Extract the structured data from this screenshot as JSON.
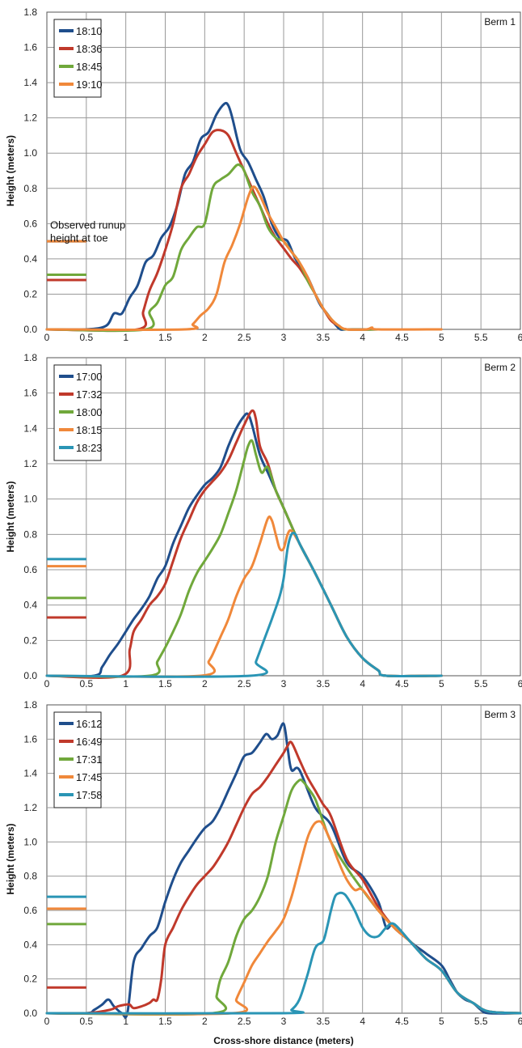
{
  "chart_data": [
    {
      "type": "line",
      "title": "Berm 1",
      "xlabel": "",
      "ylabel": "Height (meters)",
      "xlim": [
        0,
        6
      ],
      "ylim": [
        0,
        1.8
      ],
      "xticks": [
        "0",
        "0.5",
        "1",
        "1.5",
        "2",
        "2.5",
        "3",
        "3.5",
        "4",
        "4.5",
        "5",
        "5.5",
        "6"
      ],
      "yticks": [
        "0.0",
        "0.2",
        "0.4",
        "0.6",
        "0.8",
        "1.0",
        "1.2",
        "1.4",
        "1.6",
        "1.8"
      ],
      "grid": true,
      "legend": "top-left",
      "annotation": [
        "Observed runup",
        "height at toe"
      ],
      "series": [
        {
          "name": "18:10",
          "color": "#1f4e8c",
          "runup": 0.5,
          "x": [
            0,
            0.5,
            0.75,
            0.85,
            0.95,
            1.05,
            1.15,
            1.25,
            1.35,
            1.45,
            1.55,
            1.65,
            1.75,
            1.85,
            1.95,
            2.05,
            2.15,
            2.25,
            2.3,
            2.35,
            2.45,
            2.55,
            2.65,
            2.75,
            2.85,
            2.95,
            3.05,
            3.15,
            3.3,
            3.45,
            3.55,
            3.65,
            3.72,
            3.8,
            4.2
          ],
          "y": [
            0,
            0,
            0.02,
            0.09,
            0.09,
            0.18,
            0.25,
            0.38,
            0.42,
            0.52,
            0.58,
            0.7,
            0.88,
            0.95,
            1.08,
            1.12,
            1.22,
            1.28,
            1.27,
            1.2,
            1.02,
            0.95,
            0.85,
            0.75,
            0.6,
            0.52,
            0.5,
            0.4,
            0.3,
            0.15,
            0.09,
            0.03,
            0,
            0,
            0
          ]
        },
        {
          "name": "18:36",
          "color": "#c0392b",
          "runup": 0.28,
          "x": [
            0,
            1.15,
            1.22,
            1.3,
            1.4,
            1.5,
            1.6,
            1.7,
            1.8,
            1.9,
            2.0,
            2.1,
            2.2,
            2.3,
            2.4,
            2.5,
            2.6,
            2.7,
            2.8,
            2.9,
            3.0,
            3.1,
            3.2,
            3.3,
            3.4,
            3.5,
            3.6,
            3.7,
            3.8,
            4.2
          ],
          "y": [
            0,
            0,
            0.1,
            0.22,
            0.32,
            0.45,
            0.6,
            0.8,
            0.88,
            0.98,
            1.05,
            1.12,
            1.13,
            1.1,
            1.0,
            0.9,
            0.8,
            0.7,
            0.6,
            0.52,
            0.46,
            0.4,
            0.35,
            0.28,
            0.2,
            0.12,
            0.05,
            0.02,
            0,
            0
          ]
        },
        {
          "name": "18:45",
          "color": "#70a83b",
          "runup": 0.31,
          "x": [
            0,
            1.25,
            1.3,
            1.4,
            1.5,
            1.6,
            1.7,
            1.8,
            1.9,
            2.0,
            2.1,
            2.2,
            2.3,
            2.4,
            2.45,
            2.5,
            2.6,
            2.7,
            2.8,
            2.9,
            3.0,
            3.1,
            3.2,
            3.3,
            3.4,
            3.5,
            3.6,
            3.7,
            3.8,
            4.2
          ],
          "y": [
            0,
            0,
            0.1,
            0.15,
            0.25,
            0.3,
            0.45,
            0.52,
            0.58,
            0.6,
            0.8,
            0.85,
            0.88,
            0.93,
            0.93,
            0.9,
            0.78,
            0.7,
            0.58,
            0.52,
            0.5,
            0.44,
            0.38,
            0.28,
            0.2,
            0.12,
            0.06,
            0.02,
            0,
            0
          ]
        },
        {
          "name": "19:10",
          "color": "#f0883a",
          "runup": 0.5,
          "x": [
            0,
            1.75,
            1.85,
            1.95,
            2.05,
            2.15,
            2.25,
            2.35,
            2.45,
            2.55,
            2.62,
            2.7,
            2.8,
            2.9,
            3.0,
            3.1,
            3.2,
            3.3,
            3.4,
            3.5,
            3.6,
            3.7,
            3.8,
            4.05,
            4.12,
            4.2,
            5.0
          ],
          "y": [
            0,
            0,
            0.03,
            0.08,
            0.12,
            0.2,
            0.38,
            0.48,
            0.6,
            0.75,
            0.81,
            0.76,
            0.66,
            0.58,
            0.5,
            0.44,
            0.38,
            0.3,
            0.2,
            0.12,
            0.06,
            0.02,
            0,
            0,
            0.01,
            0,
            0
          ]
        }
      ]
    },
    {
      "type": "line",
      "title": "Berm 2",
      "xlabel": "",
      "ylabel": "Height (meters)",
      "xlim": [
        0,
        6
      ],
      "ylim": [
        0,
        1.8
      ],
      "xticks": [
        "0",
        "0.5",
        "1",
        "1.5",
        "2",
        "2.5",
        "3",
        "3.5",
        "4",
        "4.5",
        "5",
        "5.5",
        "6"
      ],
      "yticks": [
        "0.0",
        "0.2",
        "0.4",
        "0.6",
        "0.8",
        "1.0",
        "1.2",
        "1.4",
        "1.6",
        "1.8"
      ],
      "grid": true,
      "legend": "top-left",
      "series": [
        {
          "name": "17:00",
          "color": "#1f4e8c",
          "runup": 0,
          "x": [
            0,
            0.6,
            0.7,
            0.8,
            0.9,
            1.0,
            1.1,
            1.2,
            1.3,
            1.4,
            1.5,
            1.6,
            1.7,
            1.8,
            1.9,
            2.0,
            2.1,
            2.2,
            2.3,
            2.4,
            2.5,
            2.55,
            2.6,
            2.7,
            2.8,
            2.9,
            3.0,
            3.2,
            3.4,
            3.6,
            3.8,
            4.0,
            4.2,
            4.3,
            5.0
          ],
          "y": [
            0,
            0,
            0.05,
            0.12,
            0.18,
            0.25,
            0.32,
            0.38,
            0.45,
            0.55,
            0.62,
            0.75,
            0.85,
            0.95,
            1.02,
            1.08,
            1.12,
            1.18,
            1.3,
            1.4,
            1.47,
            1.48,
            1.42,
            1.25,
            1.15,
            1.05,
            0.95,
            0.75,
            0.58,
            0.4,
            0.22,
            0.1,
            0.03,
            0,
            0
          ]
        },
        {
          "name": "17:32",
          "color": "#c0392b",
          "runup": 0.33,
          "x": [
            0,
            0.95,
            1.05,
            1.1,
            1.2,
            1.3,
            1.4,
            1.5,
            1.6,
            1.7,
            1.8,
            1.9,
            2.0,
            2.1,
            2.2,
            2.3,
            2.4,
            2.5,
            2.6,
            2.65,
            2.7,
            2.8,
            2.9,
            3.0,
            3.2,
            3.4,
            3.6,
            3.8,
            4.0,
            4.2,
            4.3,
            5.0
          ],
          "y": [
            0,
            0,
            0.15,
            0.25,
            0.32,
            0.4,
            0.45,
            0.52,
            0.65,
            0.78,
            0.88,
            0.98,
            1.05,
            1.1,
            1.15,
            1.22,
            1.32,
            1.42,
            1.5,
            1.45,
            1.3,
            1.2,
            1.05,
            0.95,
            0.75,
            0.58,
            0.4,
            0.22,
            0.1,
            0.03,
            0,
            0
          ]
        },
        {
          "name": "18:00",
          "color": "#70a83b",
          "runup": 0.44,
          "x": [
            0,
            1.3,
            1.4,
            1.5,
            1.6,
            1.7,
            1.8,
            1.9,
            2.0,
            2.1,
            2.2,
            2.3,
            2.4,
            2.5,
            2.55,
            2.6,
            2.65,
            2.72,
            2.8,
            2.9,
            3.0,
            3.2,
            3.4,
            3.6,
            3.8,
            4.0,
            4.2,
            4.3,
            5.0
          ],
          "y": [
            0,
            0,
            0.08,
            0.16,
            0.25,
            0.35,
            0.48,
            0.58,
            0.65,
            0.72,
            0.8,
            0.92,
            1.05,
            1.22,
            1.3,
            1.33,
            1.25,
            1.15,
            1.18,
            1.05,
            0.95,
            0.75,
            0.58,
            0.4,
            0.22,
            0.1,
            0.03,
            0,
            0
          ]
        },
        {
          "name": "18:15",
          "color": "#f0883a",
          "runup": 0.62,
          "x": [
            0,
            1.95,
            2.05,
            2.1,
            2.2,
            2.3,
            2.4,
            2.5,
            2.6,
            2.7,
            2.8,
            2.85,
            2.9,
            2.95,
            3.0,
            3.05,
            3.1,
            3.2,
            3.4,
            3.6,
            3.8,
            4.0,
            4.2,
            4.3,
            5.0
          ],
          "y": [
            0,
            0,
            0.08,
            0.12,
            0.22,
            0.32,
            0.45,
            0.55,
            0.62,
            0.75,
            0.89,
            0.88,
            0.8,
            0.72,
            0.72,
            0.8,
            0.82,
            0.75,
            0.58,
            0.4,
            0.22,
            0.1,
            0.03,
            0,
            0
          ]
        },
        {
          "name": "18:23",
          "color": "#2a95b5",
          "runup": 0.66,
          "x": [
            0,
            2.58,
            2.65,
            2.75,
            2.85,
            2.95,
            3.0,
            3.05,
            3.1,
            3.15,
            3.2,
            3.4,
            3.6,
            3.8,
            4.0,
            4.2,
            4.3,
            5.0
          ],
          "y": [
            0,
            0,
            0.08,
            0.2,
            0.32,
            0.45,
            0.55,
            0.72,
            0.8,
            0.8,
            0.75,
            0.58,
            0.4,
            0.22,
            0.1,
            0.03,
            0,
            0
          ]
        }
      ]
    },
    {
      "type": "line",
      "title": "Berm 3",
      "xlabel": "Cross-shore distance (meters)",
      "ylabel": "Height (meters)",
      "xlim": [
        0,
        6
      ],
      "ylim": [
        0,
        1.8
      ],
      "xticks": [
        "0",
        "0.5",
        "1",
        "1.5",
        "2",
        "2.5",
        "3",
        "3.5",
        "4",
        "4.5",
        "5",
        "5.5",
        "6"
      ],
      "yticks": [
        "0.0",
        "0.2",
        "0.4",
        "0.6",
        "0.8",
        "1.0",
        "1.2",
        "1.4",
        "1.6",
        "1.8"
      ],
      "grid": true,
      "legend": "top-left",
      "series": [
        {
          "name": "16:12",
          "color": "#1f4e8c",
          "runup": 0,
          "x": [
            0,
            0.5,
            0.6,
            0.7,
            0.78,
            0.85,
            0.95,
            1.02,
            1.1,
            1.2,
            1.3,
            1.4,
            1.5,
            1.6,
            1.7,
            1.8,
            1.9,
            2.0,
            2.1,
            2.2,
            2.3,
            2.4,
            2.5,
            2.6,
            2.7,
            2.78,
            2.85,
            2.92,
            3.0,
            3.05,
            3.1,
            3.2,
            3.4,
            3.6,
            3.8,
            4.0,
            4.2,
            4.3,
            4.4,
            4.6,
            4.8,
            5.0,
            5.1,
            5.2,
            5.3,
            5.4,
            5.5,
            5.6,
            6.0
          ],
          "y": [
            0,
            0,
            0.02,
            0.05,
            0.08,
            0.04,
            0,
            0,
            0.3,
            0.38,
            0.45,
            0.5,
            0.65,
            0.78,
            0.88,
            0.95,
            1.02,
            1.08,
            1.12,
            1.2,
            1.3,
            1.4,
            1.5,
            1.52,
            1.58,
            1.63,
            1.6,
            1.62,
            1.69,
            1.55,
            1.42,
            1.42,
            1.2,
            1.1,
            0.88,
            0.8,
            0.65,
            0.5,
            0.52,
            0.42,
            0.35,
            0.28,
            0.2,
            0.12,
            0.08,
            0.06,
            0.02,
            0,
            0
          ]
        },
        {
          "name": "16:49",
          "color": "#c0392b",
          "runup": 0.15,
          "x": [
            0,
            0.5,
            0.8,
            0.9,
            1.0,
            1.05,
            1.1,
            1.2,
            1.3,
            1.35,
            1.4,
            1.45,
            1.5,
            1.6,
            1.7,
            1.8,
            1.9,
            2.0,
            2.1,
            2.2,
            2.3,
            2.4,
            2.5,
            2.6,
            2.7,
            2.8,
            2.9,
            3.0,
            3.05,
            3.1,
            3.2,
            3.3,
            3.4,
            3.5,
            3.6,
            3.8,
            4.0,
            4.2,
            4.4,
            4.6,
            4.8,
            5.0,
            5.2,
            5.4,
            5.6,
            6.0
          ],
          "y": [
            0,
            0,
            0.02,
            0.04,
            0.05,
            0.05,
            0.03,
            0.04,
            0.06,
            0.08,
            0.08,
            0.2,
            0.4,
            0.5,
            0.6,
            0.68,
            0.75,
            0.8,
            0.85,
            0.92,
            1.0,
            1.1,
            1.2,
            1.28,
            1.32,
            1.38,
            1.45,
            1.52,
            1.56,
            1.58,
            1.48,
            1.38,
            1.3,
            1.22,
            1.15,
            0.9,
            0.78,
            0.62,
            0.5,
            0.42,
            0.32,
            0.25,
            0.12,
            0.06,
            0.01,
            0
          ]
        },
        {
          "name": "17:31",
          "color": "#70a83b",
          "runup": 0.52,
          "x": [
            0,
            2.1,
            2.15,
            2.2,
            2.3,
            2.4,
            2.5,
            2.6,
            2.7,
            2.8,
            2.9,
            3.0,
            3.1,
            3.2,
            3.25,
            3.3,
            3.4,
            3.5,
            3.6,
            3.8,
            4.0,
            4.2,
            4.4,
            4.6,
            4.8,
            5.0,
            5.2,
            5.4,
            5.6,
            6.0
          ],
          "y": [
            0,
            0,
            0.1,
            0.2,
            0.3,
            0.45,
            0.55,
            0.6,
            0.68,
            0.8,
            1.0,
            1.15,
            1.3,
            1.36,
            1.35,
            1.32,
            1.25,
            1.12,
            1.0,
            0.85,
            0.72,
            0.6,
            0.5,
            0.42,
            0.32,
            0.25,
            0.12,
            0.06,
            0.01,
            0
          ]
        },
        {
          "name": "17:45",
          "color": "#f0883a",
          "runup": 0.61,
          "x": [
            0,
            2.35,
            2.4,
            2.5,
            2.6,
            2.7,
            2.8,
            2.9,
            3.0,
            3.1,
            3.2,
            3.3,
            3.38,
            3.45,
            3.5,
            3.6,
            3.7,
            3.8,
            3.9,
            4.0,
            4.2,
            4.4,
            4.6,
            4.8,
            5.0,
            5.2,
            5.4,
            5.6,
            6.0
          ],
          "y": [
            0,
            0,
            0.08,
            0.18,
            0.28,
            0.35,
            0.42,
            0.48,
            0.55,
            0.68,
            0.85,
            1.02,
            1.1,
            1.12,
            1.1,
            1.0,
            0.88,
            0.78,
            0.72,
            0.72,
            0.6,
            0.5,
            0.42,
            0.32,
            0.25,
            0.12,
            0.06,
            0.01,
            0
          ]
        },
        {
          "name": "17:58",
          "color": "#2a95b5",
          "runup": 0.68,
          "x": [
            0,
            3.0,
            3.1,
            3.2,
            3.3,
            3.4,
            3.5,
            3.55,
            3.6,
            3.65,
            3.7,
            3.75,
            3.8,
            3.9,
            4.0,
            4.1,
            4.2,
            4.3,
            4.4,
            4.6,
            4.8,
            5.0,
            5.2,
            5.4,
            5.6,
            6.0
          ],
          "y": [
            0,
            0,
            0.02,
            0.08,
            0.22,
            0.38,
            0.42,
            0.5,
            0.6,
            0.68,
            0.7,
            0.7,
            0.68,
            0.6,
            0.5,
            0.45,
            0.45,
            0.5,
            0.52,
            0.42,
            0.32,
            0.25,
            0.12,
            0.06,
            0.01,
            0
          ]
        }
      ]
    }
  ]
}
